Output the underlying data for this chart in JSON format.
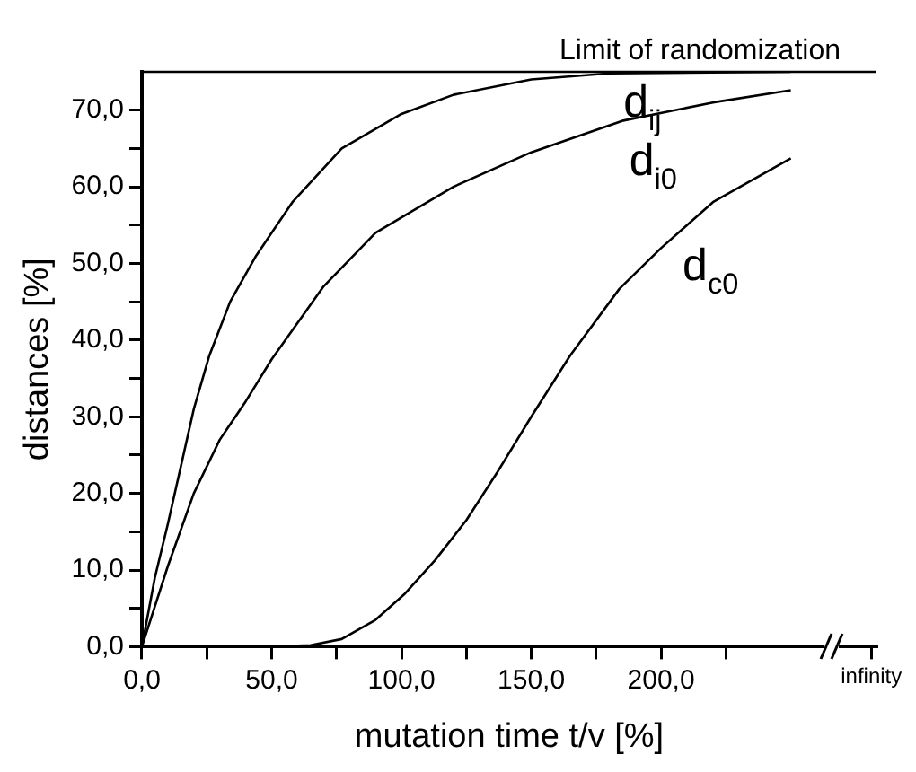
{
  "chart_data": {
    "type": "line",
    "xlabel": "mutation time t/v [%]",
    "ylabel": "distances [%]",
    "series": [
      {
        "name": "d$_{ij}$",
        "color": "#000000",
        "x": [
          0,
          5,
          10,
          20,
          26,
          34,
          44,
          58,
          77,
          100,
          120,
          150,
          180,
          250
        ],
        "values": [
          0,
          9,
          16,
          31,
          38,
          45,
          51,
          58,
          65,
          69.5,
          72,
          74,
          74.8,
          75
        ]
      },
      {
        "name": "d$_{i0}$",
        "color": "#000000",
        "x": [
          0,
          10,
          20,
          30,
          40,
          50,
          70,
          90,
          120,
          150,
          185,
          220,
          250
        ],
        "values": [
          0,
          10.5,
          20,
          27,
          32,
          37.5,
          47,
          54,
          60,
          64.5,
          68.6,
          71,
          72.6
        ]
      },
      {
        "name": "d$_{c0}$",
        "color": "#000000",
        "x": [
          0,
          50,
          65,
          77,
          90,
          101,
          113,
          125,
          137,
          150,
          165,
          184,
          200,
          220,
          250
        ],
        "values": [
          0,
          0,
          0.2,
          1,
          3.5,
          6.8,
          11.3,
          16.5,
          22.8,
          30,
          38,
          46.7,
          52,
          58,
          63.7
        ]
      }
    ],
    "xlim": [
      0,
      283
    ],
    "xticks": [
      {
        "value": 0,
        "label": "0,0"
      },
      {
        "value": 25,
        "label": null
      },
      {
        "value": 50,
        "label": "50,0"
      },
      {
        "value": 75,
        "label": null
      },
      {
        "value": 100,
        "label": "100,0"
      },
      {
        "value": 125,
        "label": null
      },
      {
        "value": 150,
        "label": "150,0"
      },
      {
        "value": 175,
        "label": null
      },
      {
        "value": 200,
        "label": "200,0"
      },
      {
        "value": 225,
        "label": null
      },
      {
        "value": 281,
        "label": "infinity"
      }
    ],
    "ylim": [
      0,
      75
    ],
    "yticks": [
      {
        "value": 0,
        "label": "0,0"
      },
      {
        "value": 5,
        "label": null
      },
      {
        "value": 10,
        "label": "10,0"
      },
      {
        "value": 15,
        "label": null
      },
      {
        "value": 20,
        "label": "20,0"
      },
      {
        "value": 25,
        "label": null
      },
      {
        "value": 30,
        "label": "30,0"
      },
      {
        "value": 35,
        "label": null
      },
      {
        "value": 40,
        "label": "40,0"
      },
      {
        "value": 45,
        "label": null
      },
      {
        "value": 50,
        "label": "50,0"
      },
      {
        "value": 55,
        "label": null
      },
      {
        "value": 60,
        "label": "60,0"
      },
      {
        "value": 65,
        "label": null
      },
      {
        "value": 70,
        "label": "70,0"
      }
    ],
    "ref_lines": [
      {
        "axis": "y",
        "value": 75,
        "label": "Limit of randomization",
        "color": "#000000"
      }
    ],
    "grid": false,
    "legend": false
  }
}
